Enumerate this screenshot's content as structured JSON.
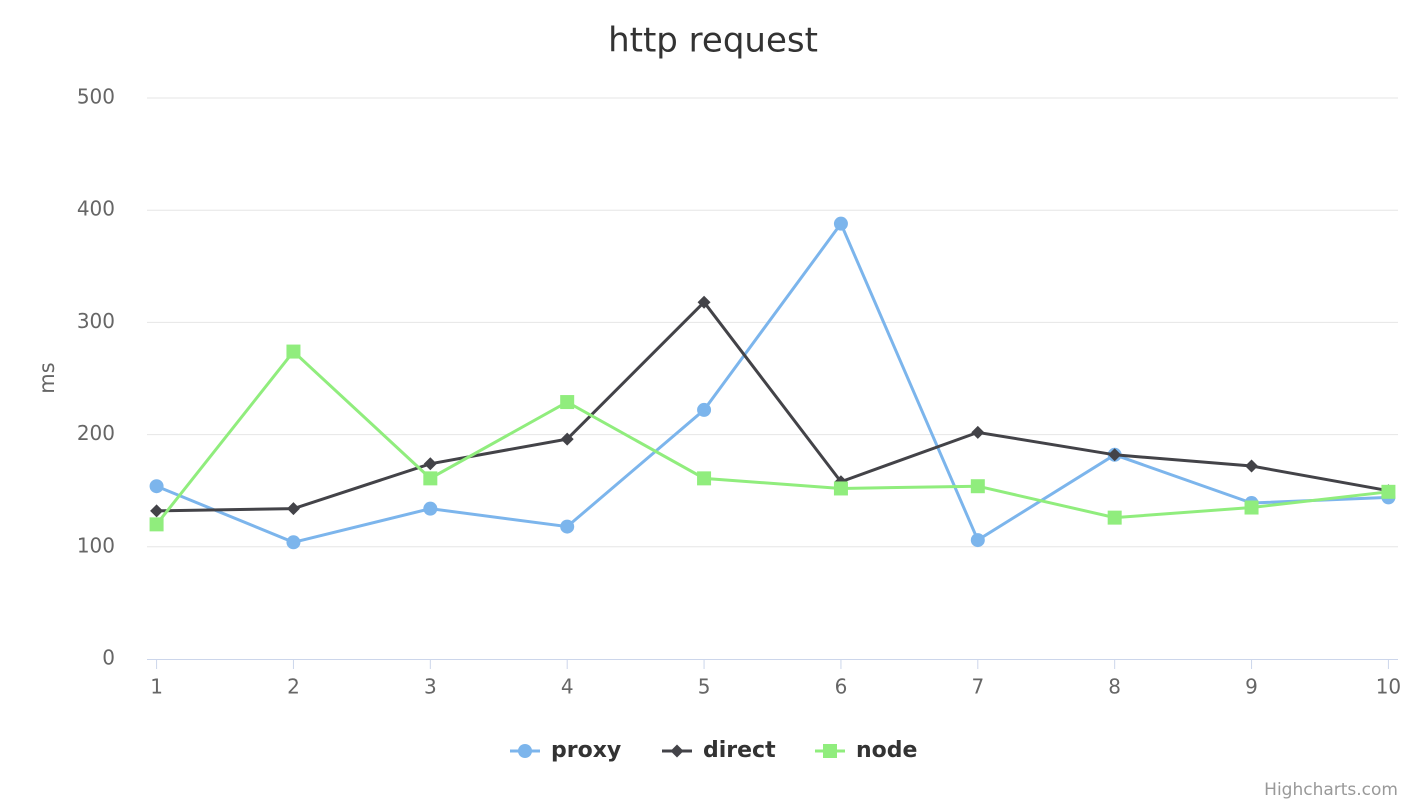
{
  "chart_data": {
    "type": "line",
    "title": "http request",
    "y_axis_title": "ms",
    "credits": "Highcharts.com",
    "x": [
      1,
      2,
      3,
      4,
      5,
      6,
      7,
      8,
      9,
      10
    ],
    "xlim": [
      0.93,
      10.07
    ],
    "xticks": [
      1,
      2,
      3,
      4,
      5,
      6,
      7,
      8,
      9,
      10
    ],
    "ylim": [
      0,
      500
    ],
    "yticks": [
      0,
      100,
      200,
      300,
      400,
      500
    ],
    "grid": true,
    "legend": "bottom",
    "series": [
      {
        "name": "proxy",
        "color": "#7cb5ec",
        "marker": "circle",
        "values": [
          154,
          104,
          134,
          118,
          222,
          388,
          106,
          182,
          139,
          144
        ]
      },
      {
        "name": "direct",
        "color": "#434348",
        "marker": "diamond",
        "values": [
          132,
          134,
          174,
          196,
          318,
          158,
          202,
          182,
          172,
          150
        ]
      },
      {
        "name": "node",
        "color": "#90ed7d",
        "marker": "square",
        "values": [
          120,
          274,
          161,
          229,
          161,
          152,
          154,
          126,
          135,
          149
        ]
      }
    ]
  }
}
